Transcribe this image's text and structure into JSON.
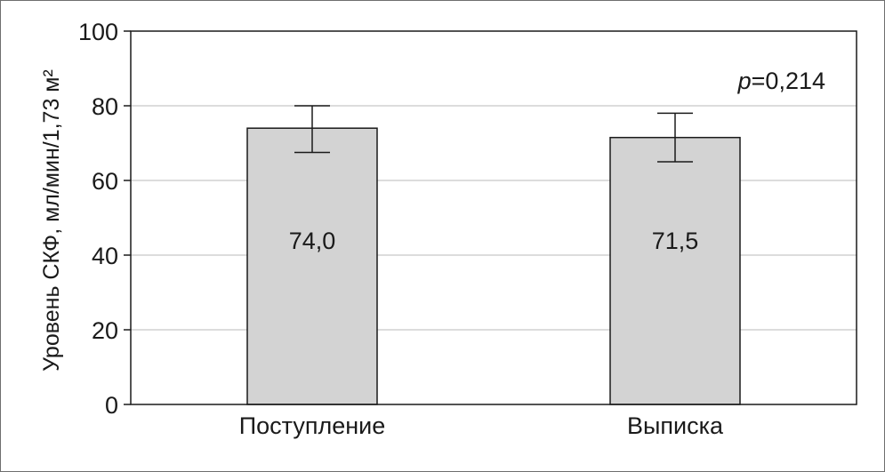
{
  "chart_data": {
    "type": "bar",
    "categories": [
      "Поступление",
      "Выписка"
    ],
    "values": [
      74.0,
      71.5
    ],
    "value_labels": [
      "74,0",
      "71,5"
    ],
    "error_bars": [
      {
        "low": 67.5,
        "high": 80.0
      },
      {
        "low": 65.0,
        "high": 78.0
      }
    ],
    "ylabel": "Уровень СКФ, мл/мин/1,73 м²",
    "ylim": [
      0,
      100
    ],
    "yticks": [
      0,
      20,
      40,
      60,
      80,
      100
    ],
    "grid": true,
    "annotation": {
      "italic": "p",
      "rest": "=0,214"
    },
    "colors": {
      "bar_fill": "#d3d3d3",
      "bar_stroke": "#1a1a1a",
      "grid": "#d0d0d0",
      "axis": "#1a1a1a"
    }
  }
}
